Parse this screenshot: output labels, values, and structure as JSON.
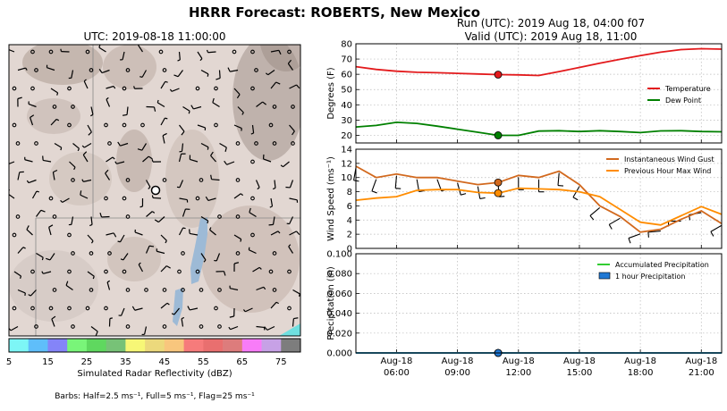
{
  "title": "HRRR Forecast: ROBERTS, New Mexico",
  "map": {
    "title": "UTC: 2019-08-18 11:00:00",
    "colorbar": {
      "label": "Simulated Radar Reflectivity (dBZ)",
      "ticks": [
        "5",
        "15",
        "25",
        "35",
        "45",
        "55",
        "65",
        "75"
      ],
      "colors": [
        "#7df6f6",
        "#5fbefa",
        "#8484f8",
        "#79f579",
        "#5fd85f",
        "#77c277",
        "#f7f776",
        "#ecd97c",
        "#f8c67d",
        "#f67b7b",
        "#e96f6f",
        "#dd7c7c",
        "#f87cf8",
        "#c7a1e6",
        "#7d7d7d"
      ]
    },
    "barb_note": "Barbs: Half=2.5 ms⁻¹, Full=5 ms⁻¹, Flag=25 ms⁻¹"
  },
  "header": {
    "run": "Run (UTC): 2019 Aug 18, 04:00 f07",
    "valid": "Valid (UTC): 2019 Aug 18, 11:00"
  },
  "x_ticks": [
    {
      "t": 2,
      "l1": "Aug-18",
      "l2": "06:00"
    },
    {
      "t": 5,
      "l1": "Aug-18",
      "l2": "09:00"
    },
    {
      "t": 8,
      "l1": "Aug-18",
      "l2": "12:00"
    },
    {
      "t": 11,
      "l1": "Aug-18",
      "l2": "15:00"
    },
    {
      "t": 14,
      "l1": "Aug-18",
      "l2": "18:00"
    },
    {
      "t": 17,
      "l1": "Aug-18",
      "l2": "21:00"
    }
  ],
  "chart_data": [
    {
      "type": "line",
      "ylabel": "Degrees (F)",
      "ylim": [
        15,
        80
      ],
      "yticks": [
        20,
        30,
        40,
        50,
        60,
        70,
        80
      ],
      "grid": true,
      "legend_placement": "right",
      "x_hours_utc": [
        4,
        5,
        6,
        7,
        8,
        9,
        10,
        11,
        12,
        13,
        14,
        15,
        16,
        17,
        18,
        19,
        20,
        21,
        22
      ],
      "series": [
        {
          "name": "Temperature",
          "color": "#e31a1c",
          "values": [
            65,
            63.2,
            62,
            61.3,
            61,
            60.6,
            60.2,
            59.8,
            59.6,
            59.2,
            61.8,
            64.5,
            67.3,
            69.8,
            72.2,
            74.5,
            76.2,
            76.8,
            76.5
          ]
        },
        {
          "name": "Dew Point",
          "color": "#008000",
          "values": [
            25.5,
            26.5,
            28.5,
            27.8,
            26,
            24,
            22,
            20,
            20,
            22.8,
            23,
            22.5,
            23,
            22.5,
            21.8,
            22.9,
            23,
            22.5,
            22.3
          ]
        }
      ],
      "current_marker_hour": 11
    },
    {
      "type": "line",
      "ylabel": "Wind Speed (ms⁻¹)",
      "ylim": [
        0,
        14
      ],
      "yticks": [
        0,
        2,
        4,
        6,
        8,
        10,
        12,
        14
      ],
      "grid": true,
      "legend_placement": "top-right",
      "x_hours_utc": [
        4,
        5,
        6,
        7,
        8,
        9,
        10,
        11,
        12,
        13,
        14,
        15,
        16,
        17,
        18,
        19,
        20,
        21,
        22
      ],
      "series": [
        {
          "name": "Instantaneous Wind Gust",
          "color": "#d2691e",
          "values": [
            11.6,
            10,
            10.5,
            10,
            10,
            9.5,
            9,
            9.3,
            10.3,
            10,
            10.9,
            9,
            6,
            4.5,
            2.3,
            2.7,
            4.1,
            5.3,
            3.5
          ]
        },
        {
          "name": "Previous Hour Max Wind",
          "color": "#ff8c00",
          "values": [
            6.8,
            7.1,
            7.3,
            8.2,
            8.3,
            8.3,
            7.9,
            7.8,
            8.5,
            8.4,
            8.3,
            8,
            7.3,
            5.5,
            3.7,
            3.3,
            4.6,
            5.9,
            4.8
          ]
        }
      ],
      "current_marker_hour": 11
    },
    {
      "type": "line",
      "ylabel": "Precipitation (in)",
      "ylim": [
        0,
        0.1
      ],
      "yticks": [
        "0.000",
        "0.020",
        "0.040",
        "0.060",
        "0.080",
        "0.100"
      ],
      "grid": true,
      "legend_placement": "top-right",
      "x_hours_utc": [
        4,
        5,
        6,
        7,
        8,
        9,
        10,
        11,
        12,
        13,
        14,
        15,
        16,
        17,
        18,
        19,
        20,
        21,
        22
      ],
      "series": [
        {
          "name": "Accumulated Precipitation",
          "color": "#32cd32",
          "values": [
            0,
            0,
            0,
            0,
            0,
            0,
            0,
            0,
            0,
            0,
            0,
            0,
            0,
            0,
            0,
            0,
            0,
            0,
            0
          ]
        },
        {
          "name": "1 hour Precipitation",
          "color": "#1f78d4",
          "values": [
            0,
            0,
            0,
            0,
            0,
            0,
            0,
            0,
            0,
            0,
            0,
            0,
            0,
            0,
            0,
            0,
            0,
            0,
            0
          ]
        }
      ],
      "current_marker_hour": 11
    }
  ]
}
